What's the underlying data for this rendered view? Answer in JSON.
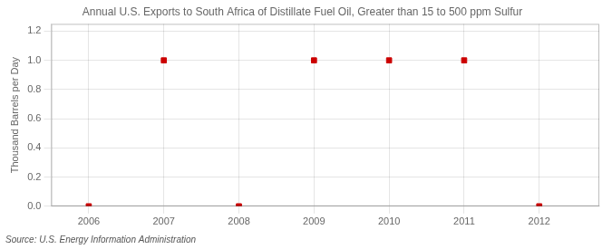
{
  "chart_data": {
    "type": "scatter",
    "title": "Annual U.S. Exports to South Africa of Distillate Fuel Oil, Greater than 15 to 500 ppm Sulfur",
    "y_label": "Thousand Barrels per Day",
    "annotations": [
      "Source: U.S. Energy Information Administration"
    ],
    "x": [
      2006,
      2007,
      2008,
      2009,
      2010,
      2011,
      2012
    ],
    "values": [
      0.0,
      1.0,
      0.0,
      1.0,
      1.0,
      1.0,
      0.0
    ],
    "color": "#cc0000",
    "marker": "square",
    "xlim": [
      2005.5,
      2012.8
    ],
    "xticks": [
      2006,
      2007,
      2008,
      2009,
      2010,
      2011,
      2012
    ],
    "ylim": [
      0.0,
      1.25
    ],
    "yticks": [
      {
        "value": 0.0,
        "label": "0.0"
      },
      0.2,
      0.4,
      0.6,
      0.8,
      {
        "value": 1.0,
        "label": "1.0"
      },
      1.2
    ],
    "grid": true
  }
}
